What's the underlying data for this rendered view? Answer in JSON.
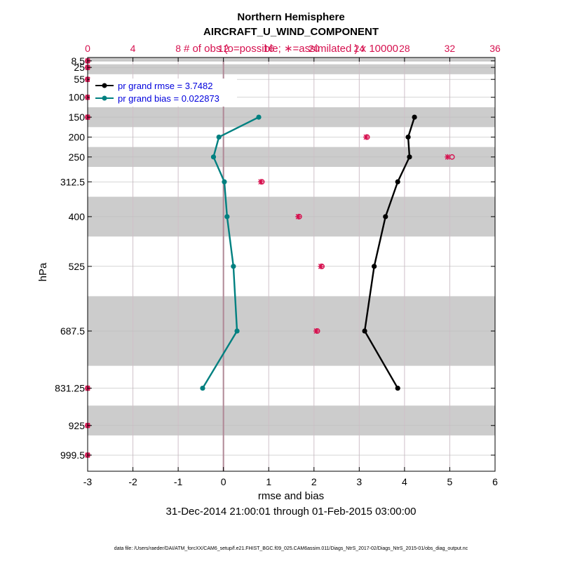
{
  "chart_data": {
    "type": "line",
    "title": "Northern Hemisphere",
    "subtitle": "AIRCRAFT_U_WIND_COMPONENT",
    "top_axis_label": "# of obs (o=possible; ∗=assimilated ) x 10000",
    "xlabel": "rmse and bias",
    "ylabel": "hPa",
    "date_range": "31-Dec-2014 21:00:01 through 01-Feb-2015 03:00:00",
    "footer": "data file: /Users/raeder/DAI/ATM_forcXX/CAM6_setup/f.e21.FHIST_BGC.f09_025.CAM6assim.011/Diags_NtrS_2017-02/Diags_NtrS_2015-01/obs_diag_output.nc",
    "xlim": [
      -3,
      6
    ],
    "x_ticks": [
      -3,
      -2,
      -1,
      0,
      1,
      2,
      3,
      4,
      5,
      6
    ],
    "top_xlim": [
      0,
      36
    ],
    "top_ticks": [
      0,
      4,
      8,
      12,
      16,
      20,
      24,
      28,
      32,
      36
    ],
    "ylim": [
      1040,
      0
    ],
    "levels": [
      8.5,
      25,
      55,
      100,
      150,
      200,
      250,
      312.5,
      400,
      525,
      687.5,
      831.25,
      925,
      999.5
    ],
    "level_labels": [
      "8.5",
      "25",
      "55",
      "100",
      "150",
      "200",
      "250",
      "312.5",
      "400",
      "525",
      "687.5",
      "831.25",
      "925",
      "999.5"
    ],
    "bands": [
      [
        0,
        10
      ],
      [
        17,
        42
      ],
      [
        125,
        175
      ],
      [
        225,
        275
      ],
      [
        350,
        450
      ],
      [
        600,
        775
      ],
      [
        875,
        950
      ]
    ],
    "series": [
      {
        "name": "pr grand rmse = 3.7482",
        "color": "#000000",
        "levels": [
          150,
          200,
          250,
          312.5,
          400,
          525,
          687.5,
          831.25
        ],
        "values": [
          4.22,
          4.08,
          4.11,
          3.85,
          3.58,
          3.33,
          3.12,
          3.85
        ]
      },
      {
        "name": "pr grand bias = 0.022873",
        "color": "#008080",
        "levels": [
          150,
          200,
          250,
          312.5,
          400,
          525,
          687.5,
          831.25
        ],
        "values": [
          0.78,
          -0.1,
          -0.22,
          0.02,
          0.08,
          0.22,
          0.3,
          -0.46
        ]
      }
    ],
    "obs_possible": {
      "levels": [
        8.5,
        25,
        55,
        100,
        150,
        200,
        250,
        312.5,
        400,
        525,
        687.5,
        831.25,
        925,
        999.5
      ],
      "values": [
        0,
        0,
        0,
        0,
        0,
        24.7,
        32.2,
        15.4,
        18.7,
        20.7,
        20.3,
        0,
        0,
        0
      ]
    },
    "obs_assimilated": {
      "levels": [
        8.5,
        25,
        55,
        100,
        150,
        200,
        250,
        312.5,
        400,
        525,
        687.5,
        831.25,
        925,
        999.5
      ],
      "values": [
        0,
        0,
        0,
        0,
        0,
        24.6,
        31.8,
        15.3,
        18.6,
        20.6,
        20.2,
        0,
        0,
        0
      ]
    },
    "colors": {
      "obs": "#d6114f",
      "band": "#cccccc",
      "grid": "#cfc0c8",
      "zero_line": "#b08896",
      "legend_text": "#0000dd"
    }
  }
}
